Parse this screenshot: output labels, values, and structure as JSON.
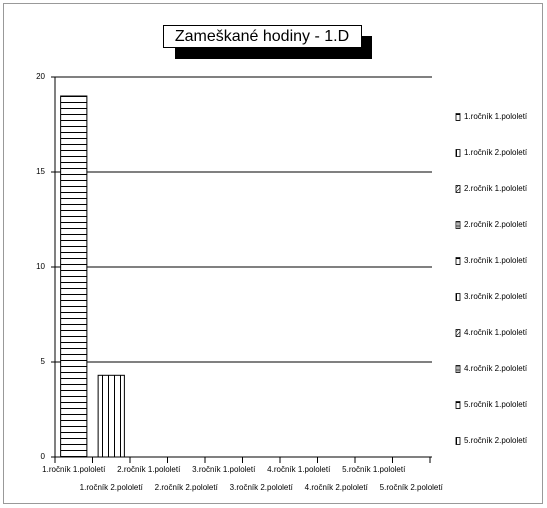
{
  "chart_data": {
    "type": "bar",
    "title": "Zameškané hodiny - 1.D",
    "categories": [
      "1.ročník 1.pololetí",
      "1.ročník 2.pololetí",
      "2.ročník 1.pololetí",
      "2.ročník 2.pololetí",
      "3.ročník 1.pololetí",
      "3.ročník 2.pololetí",
      "4.ročník 1.pololetí",
      "4.ročník 2.pololetí",
      "5.ročník 1.pololetí",
      "5.ročník 2.pololetí"
    ],
    "values": [
      19,
      4.3,
      0,
      0,
      0,
      0,
      0,
      0,
      0,
      0
    ],
    "color": "#000000",
    "ylim": [
      0,
      20
    ],
    "yticks": [
      0,
      5,
      10,
      15,
      20
    ],
    "grid": true,
    "legend": "right"
  }
}
